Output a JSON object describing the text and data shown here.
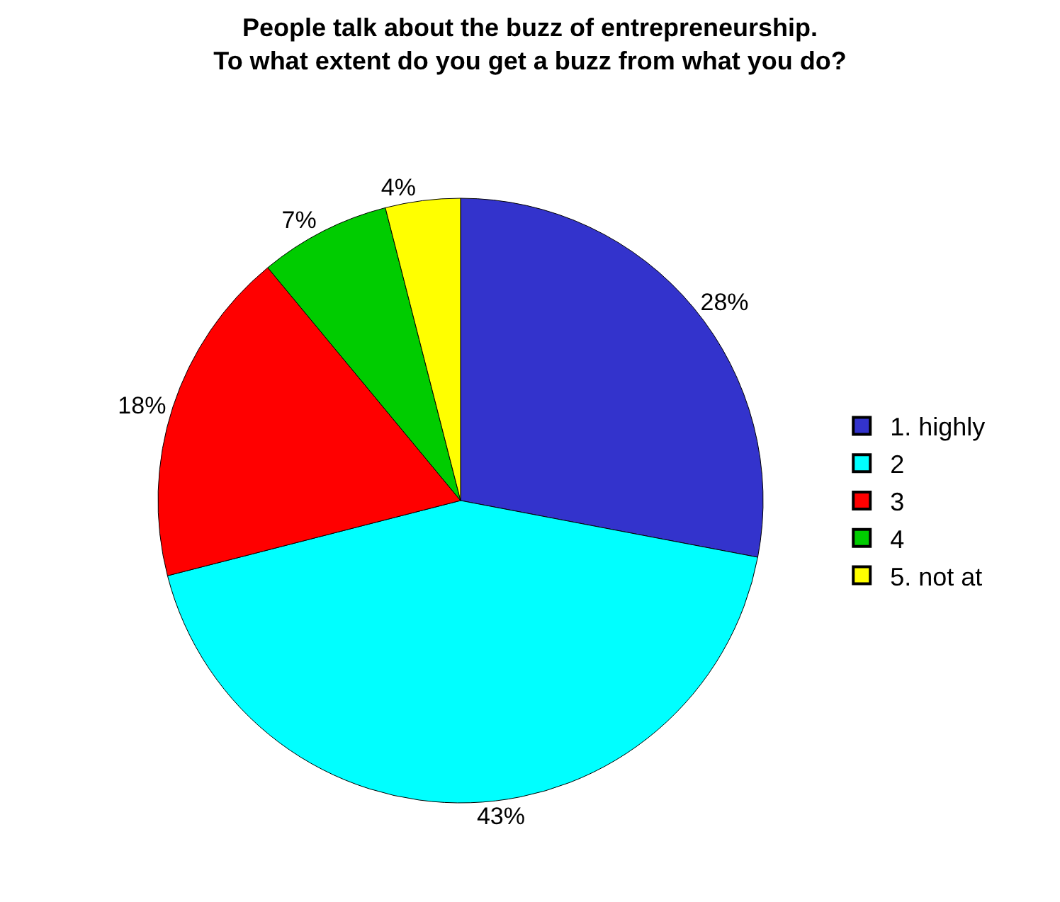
{
  "chart_data": {
    "type": "pie",
    "title": "People talk about the buzz of entrepreneurship.\nTo what extent do you get a buzz from what you do?",
    "categories": [
      "1. highly",
      "2",
      "3",
      "4",
      "5. not at"
    ],
    "values": [
      28,
      43,
      18,
      7,
      4
    ],
    "value_labels": [
      "28%",
      "43%",
      "18%",
      "7%",
      "4%"
    ],
    "colors": [
      "#3333cc",
      "#00ffff",
      "#ff0000",
      "#00cc00",
      "#ffff00"
    ],
    "legend": "right"
  }
}
